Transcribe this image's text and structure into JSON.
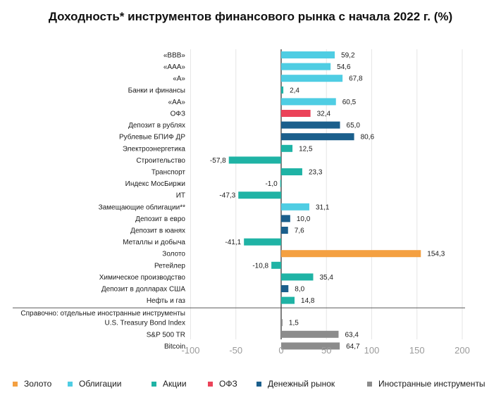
{
  "chart_data": {
    "type": "bar",
    "orientation": "horizontal",
    "title": "Доходность* инструментов финансового рынка с начала 2022 г. (%)",
    "xlim": [
      -100,
      200
    ],
    "xticks": [
      "-100",
      "-50",
      "0",
      "50",
      "100",
      "150",
      "200"
    ],
    "tick_values": [
      -100,
      -50,
      0,
      50,
      100,
      150,
      200
    ],
    "grid": true,
    "legend_position": "bottom",
    "reference_label": "Справочно: отдельные иностранные инструменты",
    "categories": [
      "«ВВВ»",
      "«ААА»",
      "«А»",
      "Банки и финансы",
      "«АА»",
      "ОФЗ",
      "Депозит в рублях",
      "Рублевые БПИФ ДР",
      "Электроэнергетика",
      "Строительство",
      "Транспорт",
      "Индекс МосБиржи",
      "ИТ",
      "Замещающие облигации**",
      "Депозит в евро",
      "Депозит в юанях",
      "Металлы и добыча",
      "Золото",
      "Ретейлер",
      "Химическое производство",
      "Депозит в долларах США",
      "Нефть и газ",
      "U.S. Treasury Bond Index",
      "S&P 500 TR",
      "Bitcoin"
    ],
    "values": [
      59.2,
      54.6,
      67.8,
      2.4,
      60.5,
      32.4,
      65.0,
      80.6,
      12.5,
      -57.8,
      23.3,
      -1.0,
      -47.3,
      31.1,
      10.0,
      7.6,
      -41.1,
      154.3,
      -10.8,
      35.4,
      8.0,
      14.8,
      1.5,
      63.4,
      64.7
    ],
    "value_labels": [
      "59,2",
      "54,6",
      "67,8",
      "2,4",
      "60,5",
      "32,4",
      "65,0",
      "80,6",
      "12,5",
      "-57,8",
      "23,3",
      "-1,0",
      "-47,3",
      "31,1",
      "10,0",
      "7,6",
      "-41,1",
      "154,3",
      "-10,8",
      "35,4",
      "8,0",
      "14,8",
      "1,5",
      "63,4",
      "64,7"
    ],
    "groups": [
      "Облигации",
      "Облигации",
      "Облигации",
      "Акции",
      "Облигации",
      "ОФЗ",
      "Денежный рынок",
      "Денежный рынок",
      "Акции",
      "Акции",
      "Акции",
      "Акции",
      "Акции",
      "Облигации",
      "Денежный рынок",
      "Денежный рынок",
      "Акции",
      "Золото",
      "Акции",
      "Акции",
      "Денежный рынок",
      "Акции",
      "Иностранные инструменты",
      "Иностранные инструменты",
      "Иностранные инструменты"
    ],
    "legend": [
      {
        "name": "Золото",
        "color": "#F4A041"
      },
      {
        "name": "Облигации",
        "color": "#4FCDE3"
      },
      {
        "name": "Акции",
        "color": "#1FB3A5"
      },
      {
        "name": "ОФЗ",
        "color": "#EB4359"
      },
      {
        "name": "Денежный рынок",
        "color": "#1B5F8C"
      },
      {
        "name": "Иностранные инструменты",
        "color": "#8C8C8C"
      }
    ]
  }
}
